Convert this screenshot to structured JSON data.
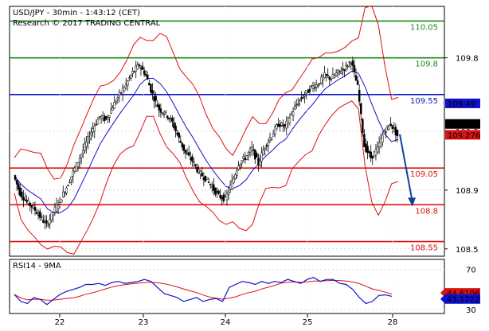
{
  "chart_data": [
    {
      "type": "candlestick",
      "header": {
        "line1": "USD/JPY - 30min - 1:43:12 (CET)",
        "line2": "Research © 2017 TRADING CENTRAL"
      },
      "y_axis": {
        "min": 108.45,
        "max": 110.15,
        "ticks": [
          "109.8",
          "109.3",
          "108.9",
          "108.5"
        ],
        "tick_values": [
          109.8,
          109.3,
          108.9,
          108.5
        ]
      },
      "levels": [
        {
          "label": "110.05",
          "value": 110.05,
          "color": "#1a8a1a"
        },
        {
          "label": "109.8",
          "value": 109.8,
          "color": "#1a8a1a"
        },
        {
          "label": "109.55",
          "value": 109.55,
          "color": "#1010cc"
        },
        {
          "label": "109.05",
          "value": 109.05,
          "color": "#dd1111"
        },
        {
          "label": "108.8",
          "value": 108.8,
          "color": "#dd1111"
        },
        {
          "label": "108.55",
          "value": 108.55,
          "color": "#dd1111"
        }
      ],
      "price_tags": [
        {
          "label": "109.49",
          "value": 109.49,
          "bg": "#1010cc",
          "fg": "#ffffff"
        },
        {
          "label": "109.276",
          "value": 109.35,
          "bg": "#000000",
          "fg": "#ffffff"
        },
        {
          "label": "109.276",
          "value": 109.276,
          "bg": "#dd1111",
          "fg": "#ffffff"
        }
      ],
      "close_path": [
        109.0,
        108.88,
        108.82,
        108.78,
        108.72,
        108.66,
        108.75,
        108.83,
        108.92,
        109.02,
        109.12,
        109.22,
        109.32,
        109.4,
        109.38,
        109.47,
        109.55,
        109.62,
        109.7,
        109.75,
        109.68,
        109.55,
        109.45,
        109.42,
        109.36,
        109.25,
        109.15,
        109.1,
        109.02,
        108.98,
        108.92,
        108.86,
        108.84,
        108.95,
        109.08,
        109.12,
        109.18,
        109.08,
        109.2,
        109.27,
        109.35,
        109.33,
        109.42,
        109.5,
        109.55,
        109.6,
        109.62,
        109.68,
        109.66,
        109.7,
        109.73,
        109.78,
        109.6,
        109.2,
        109.12,
        109.18,
        109.3,
        109.35,
        109.27
      ],
      "forecast": {
        "from": 109.28,
        "to": 108.8,
        "color": "#1040a0"
      },
      "x_labels": [
        "22",
        "23",
        "24",
        "25",
        "28"
      ]
    },
    {
      "type": "line",
      "header": {
        "label": "RSI14 - 9MA"
      },
      "y_axis": {
        "min": 26,
        "max": 80,
        "ticks": [
          "70",
          "30"
        ],
        "tick_values": [
          70,
          30
        ]
      },
      "rsi": [
        45,
        38,
        36,
        42,
        40,
        35,
        40,
        45,
        48,
        50,
        52,
        55,
        55,
        56,
        54,
        57,
        58,
        56,
        57,
        58,
        60,
        58,
        52,
        46,
        44,
        42,
        38,
        40,
        42,
        38,
        40,
        41,
        38,
        52,
        55,
        58,
        57,
        55,
        58,
        56,
        58,
        57,
        60,
        58,
        56,
        60,
        62,
        58,
        60,
        60,
        56,
        55,
        50,
        42,
        36,
        38,
        44,
        44.6106,
        43.1722
      ],
      "price_tags": [
        {
          "label": "44.6106",
          "value": 46.5,
          "bg": "#dd1111",
          "fg": "#ffffff"
        },
        {
          "label": "43.1722",
          "value": 40.5,
          "bg": "#1010cc",
          "fg": "#ffffff"
        }
      ]
    }
  ]
}
